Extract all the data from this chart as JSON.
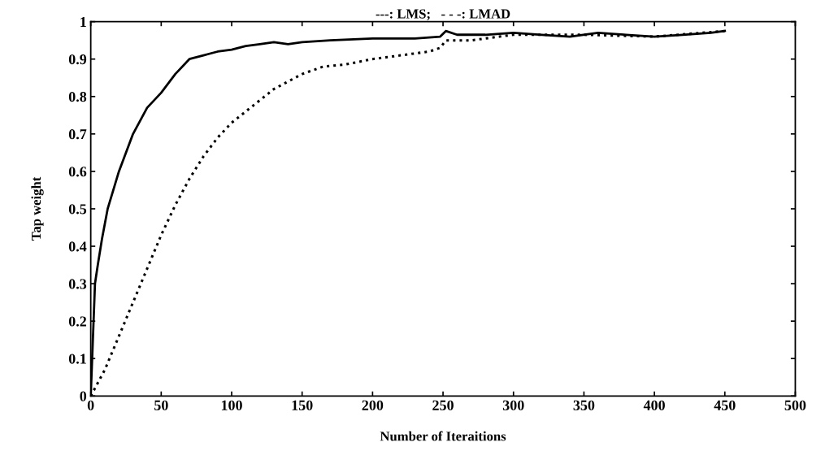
{
  "chart_data": {
    "type": "line",
    "title": "---: LMS;   - - -: LMAD",
    "xlabel": "Number of Iteraitions",
    "ylabel": "Tap weight",
    "xlim": [
      0,
      500
    ],
    "xticks": [
      0,
      50,
      100,
      150,
      200,
      250,
      300,
      350,
      400,
      450,
      500
    ],
    "ylim": [
      0,
      1
    ],
    "yticks": [
      0,
      0.1,
      0.2,
      0.3,
      0.4,
      0.5,
      0.6,
      0.7,
      0.8,
      0.9,
      1
    ],
    "grid": false,
    "marker": "none",
    "series": [
      {
        "color": "#000000",
        "line_style": "solid",
        "x": [
          0,
          1,
          2,
          3,
          5,
          8,
          12,
          20,
          30,
          40,
          50,
          60,
          70,
          80,
          90,
          100,
          110,
          120,
          130,
          140,
          150,
          170,
          200,
          230,
          248,
          252,
          260,
          280,
          300,
          320,
          340,
          360,
          380,
          400,
          420,
          440,
          450
        ],
        "values": [
          0,
          0.1,
          0.2,
          0.3,
          0.35,
          0.42,
          0.5,
          0.6,
          0.7,
          0.77,
          0.81,
          0.86,
          0.9,
          0.91,
          0.92,
          0.925,
          0.935,
          0.94,
          0.945,
          0.94,
          0.945,
          0.95,
          0.955,
          0.955,
          0.96,
          0.975,
          0.965,
          0.965,
          0.97,
          0.965,
          0.96,
          0.97,
          0.965,
          0.96,
          0.965,
          0.97,
          0.975
        ]
      },
      {
        "color": "#000000",
        "line_style": "dotted",
        "x": [
          0,
          10,
          20,
          30,
          40,
          50,
          60,
          70,
          80,
          90,
          100,
          110,
          120,
          130,
          140,
          150,
          165,
          180,
          200,
          220,
          240,
          248,
          252,
          270,
          290,
          300,
          320,
          350,
          400,
          450
        ],
        "values": [
          0,
          0.07,
          0.16,
          0.25,
          0.34,
          0.43,
          0.51,
          0.58,
          0.64,
          0.69,
          0.73,
          0.76,
          0.79,
          0.82,
          0.84,
          0.86,
          0.88,
          0.885,
          0.9,
          0.91,
          0.92,
          0.93,
          0.95,
          0.95,
          0.96,
          0.965,
          0.965,
          0.965,
          0.96,
          0.975
        ]
      }
    ]
  }
}
